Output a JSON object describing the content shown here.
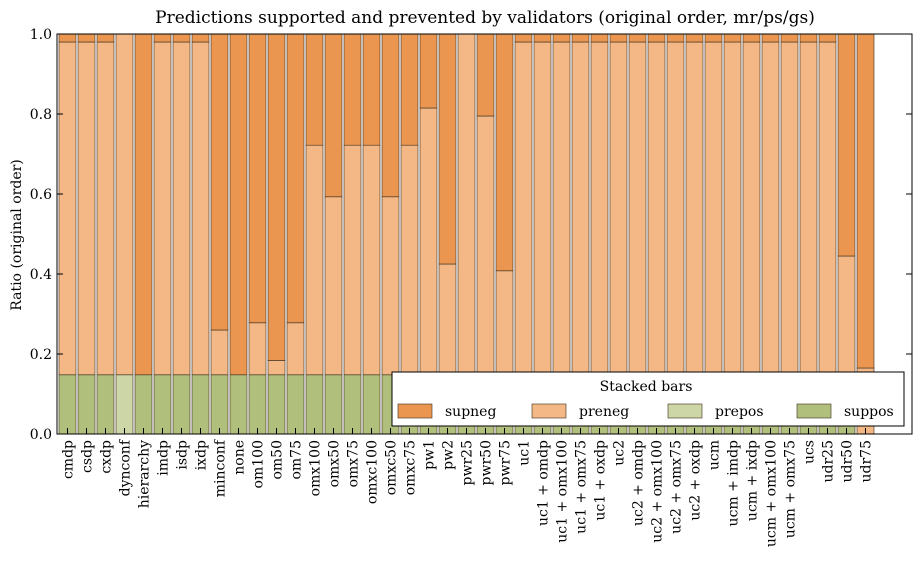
{
  "chart_data": {
    "type": "bar",
    "stacked": true,
    "title": "Predictions supported and prevented by validators (original order, mr/ps/gs)",
    "xlabel": "",
    "ylabel": "Ratio (original order)",
    "ylim": [
      0,
      1.0
    ],
    "yticks": [
      "0.0",
      "0.2",
      "0.4",
      "0.6",
      "0.8",
      "1.0"
    ],
    "grid": false,
    "legend": {
      "title": "Stacked bars",
      "placement": "lower-right",
      "entries": [
        "supneg",
        "preneg",
        "prepos",
        "suppos"
      ]
    },
    "categories": [
      "cmdp",
      "csdp",
      "cxdp",
      "dynconf",
      "hierarchy",
      "imdp",
      "isdp",
      "ixdp",
      "minconf",
      "none",
      "om100",
      "om50",
      "om75",
      "omx100",
      "omx50",
      "omx75",
      "omxc100",
      "omxc50",
      "omxc75",
      "pw1",
      "pw2",
      "pwr25",
      "pwr50",
      "pwr75",
      "uc1",
      "uc1 + omdp",
      "uc1 + omx100",
      "uc1 + omx75",
      "uc1 + oxdp",
      "uc2",
      "uc2 + omdp",
      "uc2 + omx100",
      "uc2 + omx75",
      "uc2 + oxdp",
      "ucm",
      "ucm + imdp",
      "ucm + ixdp",
      "ucm + omx100",
      "ucm + omx75",
      "ucs",
      "udr25",
      "udr50",
      "udr75"
    ],
    "series": [
      {
        "name": "suppos",
        "color": "#b0c07c",
        "values": [
          0.148,
          0.148,
          0.148,
          0,
          0.148,
          0.148,
          0.148,
          0.148,
          0.148,
          0.148,
          0.148,
          0.148,
          0.148,
          0.148,
          0.148,
          0.148,
          0.148,
          0.148,
          0.148,
          0.148,
          0.148,
          0.148,
          0.148,
          0.148,
          0.148,
          0.148,
          0.148,
          0.148,
          0.148,
          0.148,
          0.148,
          0.148,
          0.148,
          0.148,
          0.148,
          0.148,
          0.148,
          0.148,
          0.148,
          0.148,
          0.148,
          0.148,
          0
        ]
      },
      {
        "name": "prepos",
        "color": "#cdd6a6",
        "values": [
          0,
          0,
          0,
          0.148,
          0,
          0,
          0,
          0,
          0,
          0,
          0,
          0,
          0,
          0,
          0,
          0,
          0,
          0,
          0,
          0,
          0,
          0,
          0,
          0,
          0,
          0,
          0,
          0,
          0,
          0,
          0,
          0,
          0,
          0,
          0,
          0,
          0,
          0,
          0,
          0,
          0,
          0,
          0
        ]
      },
      {
        "name": "preneg",
        "color": "#f3b886",
        "values": [
          0.832,
          0.832,
          0.832,
          0.852,
          0,
          0.832,
          0.832,
          0.832,
          0.112,
          0,
          0.13,
          0.036,
          0.13,
          0.574,
          0.445,
          0.574,
          0.574,
          0.445,
          0.574,
          0.667,
          0.277,
          0.852,
          0.647,
          0.26,
          0.832,
          0.832,
          0.832,
          0.832,
          0.832,
          0.832,
          0.832,
          0.832,
          0.832,
          0.832,
          0.832,
          0.832,
          0.832,
          0.832,
          0.832,
          0.832,
          0.832,
          0.297,
          0.165
        ]
      },
      {
        "name": "supneg",
        "color": "#ea9650",
        "values": [
          0.02,
          0.02,
          0.02,
          0,
          0.852,
          0.02,
          0.02,
          0.02,
          0.74,
          0.852,
          0.722,
          0.816,
          0.722,
          0.278,
          0.407,
          0.278,
          0.278,
          0.407,
          0.278,
          0.185,
          0.575,
          0,
          0.205,
          0.592,
          0.02,
          0.02,
          0.02,
          0.02,
          0.02,
          0.02,
          0.02,
          0.02,
          0.02,
          0.02,
          0.02,
          0.02,
          0.02,
          0.02,
          0.02,
          0.02,
          0.02,
          0.555,
          0.835
        ]
      }
    ]
  }
}
